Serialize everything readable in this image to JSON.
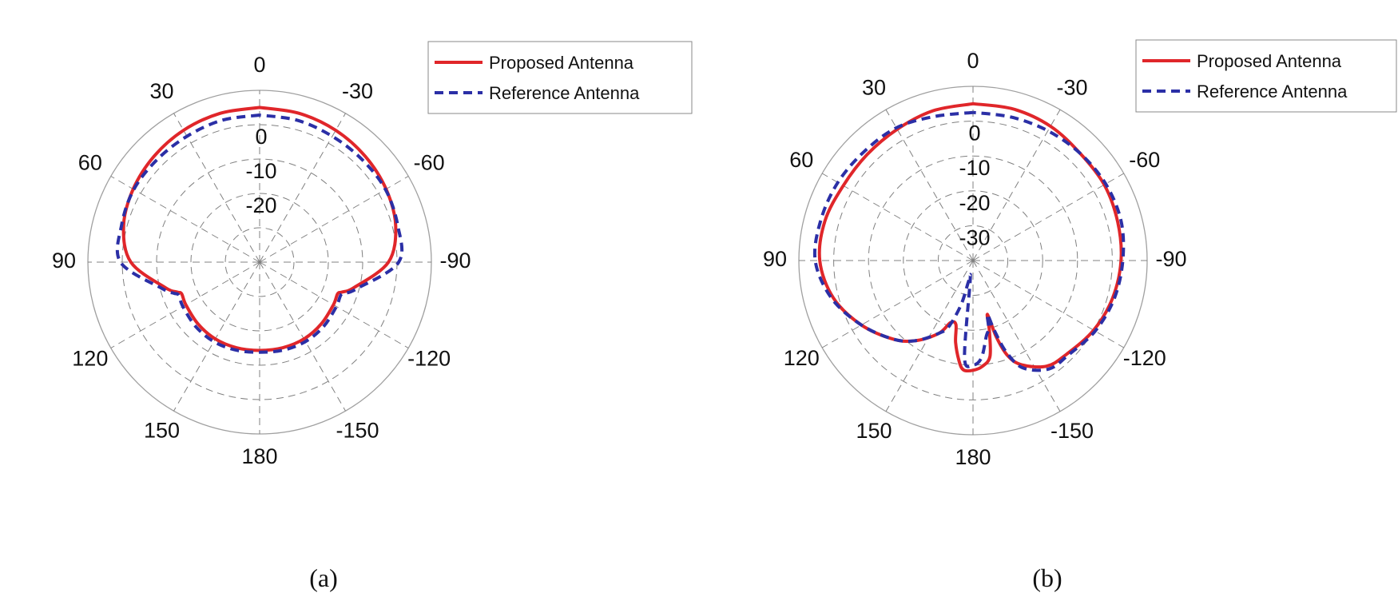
{
  "figure": {
    "captions": [
      "(a)",
      "(b)"
    ]
  },
  "colors": {
    "proposed": "#e0262a",
    "reference": "#2b2fa6",
    "grid": "#808080",
    "outer_ring": "#a0a0a0",
    "text": "#111111"
  },
  "chart_data": [
    {
      "type": "polar",
      "caption": "(a)",
      "units": "dB",
      "rlim": [
        -40,
        10
      ],
      "radial_ticks": [
        -20,
        -10,
        0
      ],
      "radial_tick_labels": [
        "-20",
        "-10",
        "0"
      ],
      "angle_ticks": [
        0,
        -30,
        -60,
        -90,
        -120,
        -150,
        180,
        150,
        120,
        90,
        60,
        30
      ],
      "angle_tick_labels": [
        "0",
        "-30",
        "-60",
        "-90",
        "-120",
        "-150",
        "180",
        "150",
        "120",
        "90",
        "60",
        "30"
      ],
      "angle_convention": "0 at top, positive angles counter-clockwise (left)",
      "legend": {
        "position": "top-right",
        "entries": [
          "Proposed Antenna",
          "Reference Antenna"
        ]
      },
      "series": [
        {
          "name": "Proposed Antenna",
          "style": "solid",
          "theta_deg": [
            0,
            15,
            30,
            45,
            60,
            75,
            90,
            105,
            110,
            112,
            120,
            135,
            150,
            165,
            180,
            195,
            210,
            225,
            240,
            248,
            250,
            255,
            270,
            285,
            300,
            315,
            330,
            345,
            360
          ],
          "values_db": [
            5,
            4.8,
            4.3,
            3.5,
            2.5,
            1,
            -2.5,
            -11.5,
            -14.5,
            -15.5,
            -15.2,
            -14.6,
            -14.2,
            -14.2,
            -14.3,
            -14.2,
            -14.2,
            -14.6,
            -15.2,
            -15.5,
            -14.5,
            -11.5,
            -2.5,
            1,
            2.5,
            3.5,
            4.3,
            4.8,
            5
          ]
        },
        {
          "name": "Reference Antenna",
          "style": "dashed",
          "theta_deg": [
            0,
            15,
            30,
            45,
            60,
            75,
            90,
            105,
            110,
            112,
            120,
            135,
            150,
            165,
            180,
            195,
            210,
            225,
            240,
            248,
            250,
            255,
            270,
            285,
            300,
            315,
            330,
            345,
            360
          ],
          "values_db": [
            2.8,
            2.7,
            2.3,
            2.2,
            2.3,
            1.6,
            0.5,
            -10.5,
            -13.5,
            -14.5,
            -14.2,
            -13.6,
            -13.3,
            -13.5,
            -13.8,
            -13.5,
            -13.3,
            -13.6,
            -14.2,
            -14.5,
            -13.5,
            -10.5,
            0.5,
            1.6,
            2.3,
            2.2,
            2.3,
            2.7,
            2.8
          ]
        }
      ]
    },
    {
      "type": "polar",
      "caption": "(b)",
      "units": "dB",
      "rlim": [
        -40,
        10
      ],
      "radial_ticks": [
        -30,
        -20,
        -10,
        0
      ],
      "radial_tick_labels": [
        "-30",
        "-20",
        "-10",
        "0"
      ],
      "angle_ticks": [
        0,
        -30,
        -60,
        -90,
        -120,
        -150,
        180,
        150,
        120,
        90,
        60,
        30
      ],
      "angle_tick_labels": [
        "0",
        "-30",
        "-60",
        "-90",
        "-120",
        "-150",
        "180",
        "150",
        "120",
        "90",
        "60",
        "30"
      ],
      "angle_convention": "0 at top, positive angles counter-clockwise (left)",
      "legend": {
        "position": "top-right",
        "entries": [
          "Proposed Antenna",
          "Reference Antenna"
        ]
      },
      "series": [
        {
          "name": "Proposed Antenna",
          "style": "solid",
          "theta_deg": [
            0,
            15,
            30,
            45,
            60,
            75,
            90,
            105,
            120,
            135,
            145,
            155,
            160,
            165,
            168,
            172,
            175,
            180,
            185,
            190,
            193,
            195,
            197,
            200,
            205,
            215,
            225,
            240,
            255,
            270,
            285,
            300,
            315,
            330,
            345,
            360
          ],
          "values_db": [
            5,
            4.5,
            3.5,
            3,
            3,
            4,
            4,
            1.5,
            -3,
            -8,
            -12,
            -17,
            -21,
            -21,
            -16,
            -11,
            -8.5,
            -8.5,
            -9.5,
            -12,
            -19,
            -24,
            -17,
            -11,
            -7,
            -3,
            -2,
            0,
            1.5,
            2.5,
            3,
            3.5,
            3.5,
            4.5,
            5,
            5
          ]
        },
        {
          "name": "Reference Antenna",
          "style": "dashed",
          "theta_deg": [
            0,
            15,
            30,
            45,
            60,
            75,
            90,
            105,
            120,
            135,
            145,
            155,
            160,
            165,
            168,
            172,
            175,
            180,
            185,
            190,
            193,
            195,
            197,
            200,
            205,
            215,
            225,
            240,
            255,
            270,
            285,
            300,
            315,
            330,
            345,
            360
          ],
          "values_db": [
            2.5,
            2.8,
            4,
            4.2,
            4.8,
            5.2,
            5.3,
            2,
            -3,
            -8,
            -12,
            -17,
            -20,
            -27,
            -34,
            -34,
            -12,
            -10,
            -12,
            -18,
            -20,
            -24,
            -19,
            -12,
            -6,
            -2,
            -1.5,
            0.5,
            2,
            3,
            4,
            4,
            3.5,
            3,
            2.6,
            2.5
          ]
        }
      ]
    }
  ]
}
